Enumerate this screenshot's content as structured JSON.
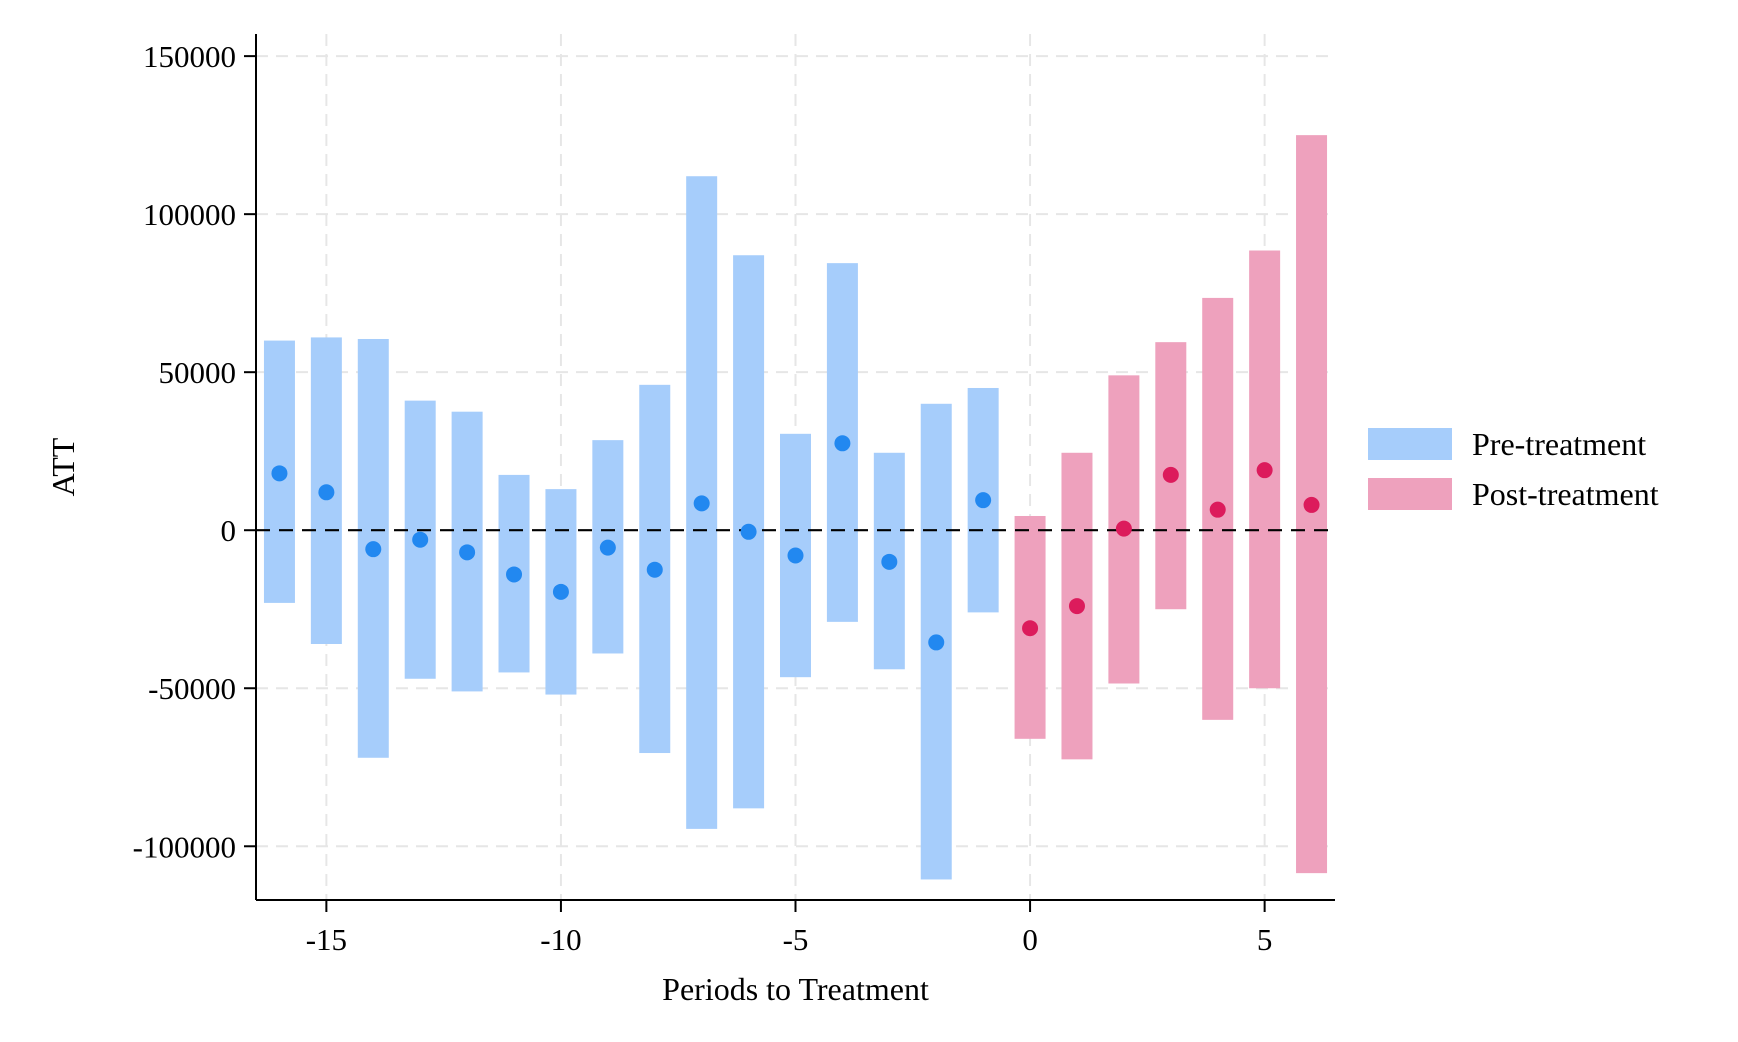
{
  "chart_data": {
    "type": "scatter",
    "xlabel": "Periods to Treatment",
    "ylabel": "ATT",
    "xlim": [
      -16.5,
      6.5
    ],
    "ylim": [
      -117000,
      157000
    ],
    "x_ticks": [
      -15,
      -10,
      -5,
      0,
      5
    ],
    "x_tick_labels": [
      "-15",
      "-10",
      "-5",
      "0",
      "5"
    ],
    "y_ticks": [
      150000,
      100000,
      50000,
      0,
      -50000,
      -100000
    ],
    "y_tick_labels": [
      "150000",
      "100000",
      "50000",
      "0",
      "-50000",
      "-100000"
    ],
    "grid": true,
    "reference_line": 0,
    "legend_position": "right",
    "series": [
      {
        "name": "Pre-treatment",
        "color": "#a6cdfb",
        "point_color": "#2288f0",
        "points": [
          {
            "x": -16,
            "y": 18000,
            "lo": -23000,
            "hi": 60000
          },
          {
            "x": -15,
            "y": 12000,
            "lo": -36000,
            "hi": 61000
          },
          {
            "x": -14,
            "y": -6000,
            "lo": -72000,
            "hi": 60500
          },
          {
            "x": -13,
            "y": -3000,
            "lo": -47000,
            "hi": 41000
          },
          {
            "x": -12,
            "y": -7000,
            "lo": -51000,
            "hi": 37500
          },
          {
            "x": -11,
            "y": -14000,
            "lo": -45000,
            "hi": 17500
          },
          {
            "x": -10,
            "y": -19500,
            "lo": -52000,
            "hi": 13000
          },
          {
            "x": -9,
            "y": -5500,
            "lo": -39000,
            "hi": 28500
          },
          {
            "x": -8,
            "y": -12500,
            "lo": -70500,
            "hi": 46000
          },
          {
            "x": -7,
            "y": 8500,
            "lo": -94500,
            "hi": 112000
          },
          {
            "x": -6,
            "y": -500,
            "lo": -88000,
            "hi": 87000
          },
          {
            "x": -5,
            "y": -8000,
            "lo": -46500,
            "hi": 30500
          },
          {
            "x": -4,
            "y": 27500,
            "lo": -29000,
            "hi": 84500
          },
          {
            "x": -3,
            "y": -10000,
            "lo": -44000,
            "hi": 24500
          },
          {
            "x": -2,
            "y": -35500,
            "lo": -110500,
            "hi": 40000
          },
          {
            "x": -1,
            "y": 9500,
            "lo": -26000,
            "hi": 45000
          }
        ]
      },
      {
        "name": "Post-treatment",
        "color": "#eea1bd",
        "point_color": "#dc1b5c",
        "points": [
          {
            "x": 0,
            "y": -31000,
            "lo": -66000,
            "hi": 4500
          },
          {
            "x": 1,
            "y": -24000,
            "lo": -72500,
            "hi": 24500
          },
          {
            "x": 2,
            "y": 500,
            "lo": -48500,
            "hi": 49000
          },
          {
            "x": 3,
            "y": 17500,
            "lo": -25000,
            "hi": 59500
          },
          {
            "x": 4,
            "y": 6500,
            "lo": -60000,
            "hi": 73500
          },
          {
            "x": 5,
            "y": 19000,
            "lo": -50000,
            "hi": 88500
          },
          {
            "x": 6,
            "y": 8000,
            "lo": -108500,
            "hi": 125000
          }
        ]
      }
    ]
  }
}
